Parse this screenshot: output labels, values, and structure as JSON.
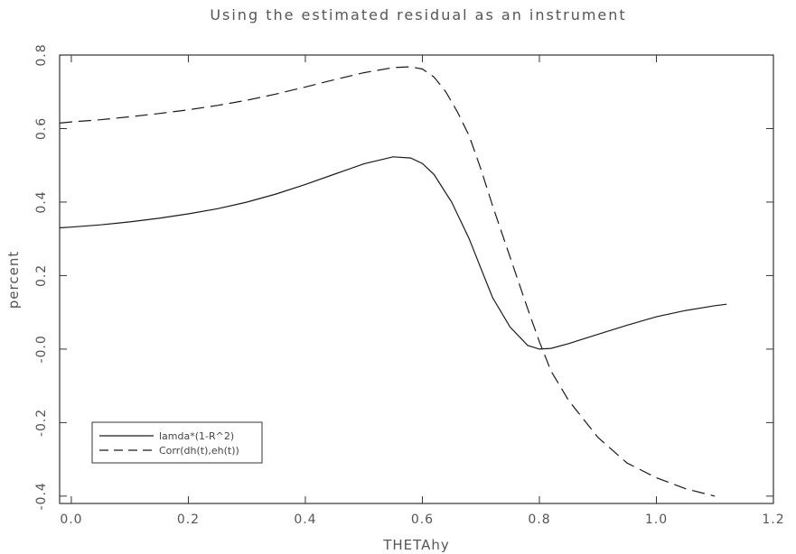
{
  "chart_data": {
    "type": "line",
    "title": "Using the estimated residual as an instrument",
    "xlabel": "THETAhy",
    "ylabel": "percent",
    "xlim": [
      -0.02,
      1.2
    ],
    "ylim": [
      -0.42,
      0.8
    ],
    "xticks": [
      0.0,
      0.2,
      0.4,
      0.6,
      0.8,
      1.0,
      1.2
    ],
    "xtick_labels": [
      "0.0",
      "0.2",
      "0.4",
      "0.6",
      "0.8",
      "1.0",
      "1.2"
    ],
    "yticks": [
      -0.4,
      -0.2,
      0.0,
      0.2,
      0.4,
      0.6,
      0.8
    ],
    "ytick_labels": [
      "-0.4",
      "-0.2",
      "-0.0",
      "0.2",
      "0.4",
      "0.6",
      "0.8"
    ],
    "grid": false,
    "legend_position": "bottom-left",
    "series": [
      {
        "name": "lambda*(1-R^2)",
        "style": "solid",
        "x": [
          -0.02,
          0.0,
          0.05,
          0.1,
          0.15,
          0.2,
          0.25,
          0.3,
          0.35,
          0.4,
          0.45,
          0.5,
          0.55,
          0.58,
          0.6,
          0.62,
          0.65,
          0.68,
          0.7,
          0.72,
          0.75,
          0.78,
          0.8,
          0.82,
          0.85,
          0.9,
          0.95,
          1.0,
          1.05,
          1.1,
          1.12
        ],
        "y": [
          0.33,
          0.332,
          0.338,
          0.346,
          0.356,
          0.368,
          0.382,
          0.4,
          0.422,
          0.448,
          0.476,
          0.504,
          0.523,
          0.52,
          0.505,
          0.475,
          0.4,
          0.3,
          0.22,
          0.14,
          0.06,
          0.01,
          0.0,
          0.002,
          0.015,
          0.04,
          0.065,
          0.088,
          0.105,
          0.118,
          0.122
        ]
      },
      {
        "name": "Corr(dh(t),eh(t))",
        "style": "dashed",
        "x": [
          -0.02,
          0.0,
          0.05,
          0.1,
          0.15,
          0.2,
          0.25,
          0.3,
          0.35,
          0.4,
          0.45,
          0.5,
          0.55,
          0.58,
          0.6,
          0.62,
          0.64,
          0.66,
          0.68,
          0.7,
          0.72,
          0.75,
          0.78,
          0.8,
          0.82,
          0.85,
          0.9,
          0.95,
          1.0,
          1.05,
          1.1
        ],
        "y": [
          0.615,
          0.618,
          0.624,
          0.632,
          0.641,
          0.651,
          0.663,
          0.677,
          0.694,
          0.713,
          0.733,
          0.752,
          0.766,
          0.768,
          0.762,
          0.74,
          0.7,
          0.645,
          0.58,
          0.49,
          0.39,
          0.25,
          0.11,
          0.02,
          -0.06,
          -0.14,
          -0.24,
          -0.31,
          -0.35,
          -0.38,
          -0.4
        ]
      }
    ]
  },
  "legend": {
    "items": [
      {
        "label": "lamda*(1-R^2)",
        "style": "solid"
      },
      {
        "label": "Corr(dh(t),eh(t))",
        "style": "dashed"
      }
    ]
  },
  "colors": {
    "line": "#1a1a1a",
    "axis": "#333333",
    "text": "#555555"
  }
}
